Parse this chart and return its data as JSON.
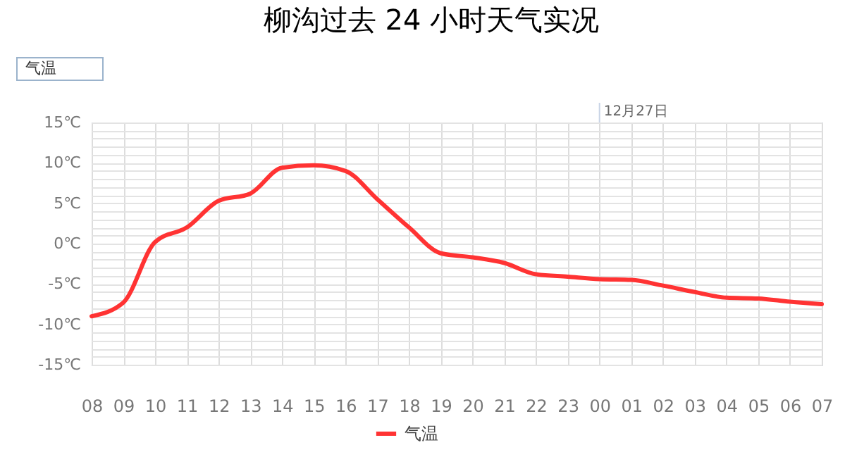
{
  "chart_data": {
    "type": "line",
    "title": "柳沟过去 24 小时天气实况",
    "categories": [
      "08",
      "09",
      "10",
      "11",
      "12",
      "13",
      "14",
      "15",
      "16",
      "17",
      "18",
      "19",
      "20",
      "21",
      "22",
      "23",
      "00",
      "01",
      "02",
      "03",
      "04",
      "05",
      "06",
      "07"
    ],
    "series": [
      {
        "name": "气温",
        "color": "#ff3333",
        "values": [
          -9,
          -7.3,
          0.2,
          2,
          5.3,
          6.2,
          9.4,
          9.7,
          9,
          5.5,
          2,
          -1.2,
          -1.7,
          -2.4,
          -3.8,
          -4.1,
          -4.4,
          -4.5,
          -5.2,
          -6,
          -6.7,
          -6.8,
          -7.2,
          -7.5
        ]
      }
    ],
    "ylim": [
      -15,
      15
    ],
    "yticks": [
      {
        "value": -15,
        "label": "-15℃"
      },
      {
        "value": -14,
        "label": null
      },
      {
        "value": -13,
        "label": null
      },
      {
        "value": -12,
        "label": null
      },
      {
        "value": -11,
        "label": null
      },
      {
        "value": -10,
        "label": "-10℃"
      },
      {
        "value": -9,
        "label": null
      },
      {
        "value": -8,
        "label": null
      },
      {
        "value": -7,
        "label": null
      },
      {
        "value": -6,
        "label": null
      },
      {
        "value": -5,
        "label": "-5℃"
      },
      {
        "value": -4,
        "label": null
      },
      {
        "value": -3,
        "label": null
      },
      {
        "value": -2,
        "label": null
      },
      {
        "value": -1,
        "label": null
      },
      {
        "value": 0,
        "label": "0℃"
      },
      {
        "value": 1,
        "label": null
      },
      {
        "value": 2,
        "label": null
      },
      {
        "value": 3,
        "label": null
      },
      {
        "value": 4,
        "label": null
      },
      {
        "value": 5,
        "label": "5℃"
      },
      {
        "value": 6,
        "label": null
      },
      {
        "value": 7,
        "label": null
      },
      {
        "value": 8,
        "label": null
      },
      {
        "value": 9,
        "label": null
      },
      {
        "value": 10,
        "label": "10℃"
      },
      {
        "value": 11,
        "label": null
      },
      {
        "value": 12,
        "label": null
      },
      {
        "value": 13,
        "label": null
      },
      {
        "value": 14,
        "label": null
      },
      {
        "value": 15,
        "label": "15℃"
      }
    ],
    "ref_lines": [
      {
        "axis": "x",
        "value": "00",
        "label": "12月27日"
      }
    ],
    "annotations": [
      "气温"
    ],
    "grid": true,
    "legend": "bottom",
    "marker": "none",
    "line_style": "solid"
  }
}
